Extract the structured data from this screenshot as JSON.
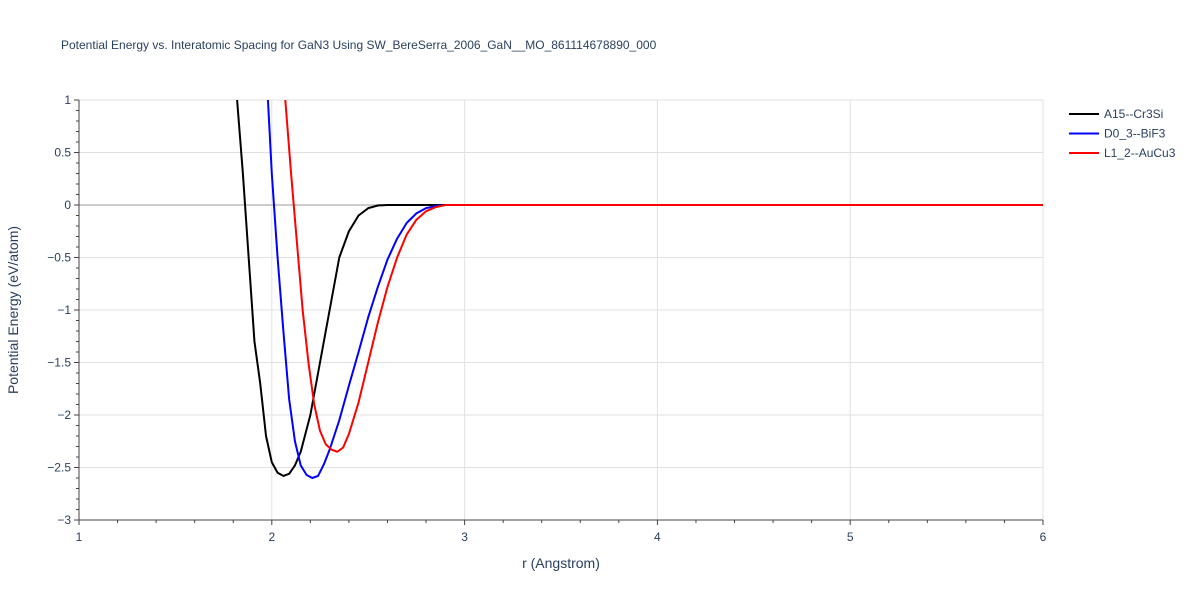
{
  "chart_data": {
    "type": "line",
    "title": "Potential Energy vs. Interatomic Spacing for GaN3 Using SW_BereSerra_2006_GaN__MO_861114678890_000",
    "xlabel": "r (Angstrom)",
    "ylabel": "Potential Energy (eV/atom)",
    "xlim": [
      1,
      6
    ],
    "ylim": [
      -3,
      1
    ],
    "x_ticks": [
      1,
      2,
      3,
      4,
      5,
      6
    ],
    "x_tick_labels": [
      "1",
      "2",
      "3",
      "4",
      "5",
      "6"
    ],
    "y_ticks": [
      1,
      0.5,
      0,
      -0.5,
      -1,
      -1.5,
      -2,
      -2.5,
      -3
    ],
    "y_tick_labels": [
      "1",
      "0.5",
      "0",
      "−0.5",
      "−1",
      "−1.5",
      "−2",
      "−2.5",
      "−3"
    ],
    "grid": true,
    "legend_position": "top-right",
    "series": [
      {
        "name": "A15--Cr3Si",
        "color": "#000000",
        "x": [
          1.82,
          1.85,
          1.88,
          1.91,
          1.94,
          1.97,
          2.0,
          2.03,
          2.06,
          2.09,
          2.12,
          2.15,
          2.2,
          2.25,
          2.3,
          2.35,
          2.4,
          2.45,
          2.5,
          2.55,
          2.6,
          2.7,
          2.8,
          3.0,
          4.0,
          5.0,
          6.0
        ],
        "y": [
          1.0,
          0.3,
          -0.5,
          -1.3,
          -1.7,
          -2.2,
          -2.45,
          -2.55,
          -2.58,
          -2.56,
          -2.48,
          -2.35,
          -2.0,
          -1.5,
          -1.0,
          -0.5,
          -0.25,
          -0.1,
          -0.03,
          -0.005,
          0.0,
          0.0,
          0.0,
          0.0,
          0.0,
          0.0,
          0.0
        ]
      },
      {
        "name": "D0_3--BiF3",
        "color": "#0000ff",
        "x": [
          1.98,
          2.0,
          2.03,
          2.06,
          2.09,
          2.12,
          2.15,
          2.18,
          2.21,
          2.24,
          2.27,
          2.3,
          2.35,
          2.4,
          2.45,
          2.5,
          2.55,
          2.6,
          2.65,
          2.7,
          2.75,
          2.8,
          2.85,
          2.9,
          3.0,
          4.0,
          5.0,
          6.0
        ],
        "y": [
          1.0,
          0.3,
          -0.5,
          -1.2,
          -1.85,
          -2.25,
          -2.48,
          -2.57,
          -2.6,
          -2.58,
          -2.47,
          -2.33,
          -2.05,
          -1.72,
          -1.4,
          -1.07,
          -0.78,
          -0.52,
          -0.32,
          -0.17,
          -0.08,
          -0.03,
          -0.01,
          0.0,
          0.0,
          0.0,
          0.0,
          0.0
        ]
      },
      {
        "name": "L1_2--AuCu3",
        "color": "#ff0000",
        "x": [
          2.07,
          2.1,
          2.13,
          2.16,
          2.19,
          2.22,
          2.25,
          2.28,
          2.31,
          2.34,
          2.37,
          2.4,
          2.45,
          2.5,
          2.55,
          2.6,
          2.65,
          2.7,
          2.75,
          2.8,
          2.85,
          2.9,
          3.0,
          4.0,
          5.0,
          6.0
        ],
        "y": [
          1.0,
          0.3,
          -0.35,
          -1.0,
          -1.5,
          -1.9,
          -2.15,
          -2.28,
          -2.33,
          -2.35,
          -2.31,
          -2.18,
          -1.88,
          -1.5,
          -1.12,
          -0.78,
          -0.5,
          -0.28,
          -0.14,
          -0.06,
          -0.02,
          0.0,
          0.0,
          0.0,
          0.0,
          0.0
        ]
      }
    ]
  }
}
